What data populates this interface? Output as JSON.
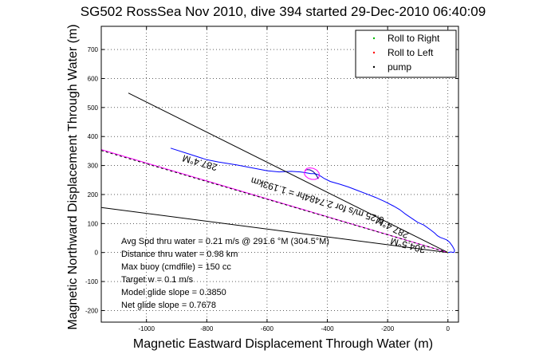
{
  "chart_data": {
    "type": "line",
    "title": "SG502 RossSea Nov 2010, dive 394 started 29-Dec-2010 06:40:09",
    "xlabel": "Magnetic Eastward Displacement Through Water (m)",
    "ylabel": "Magnetic Northward Displacement Through Water (m)",
    "xlim": [
      -1150,
      35
    ],
    "ylim": [
      -240,
      780
    ],
    "xticks": [
      -1000,
      -800,
      -600,
      -400,
      -200,
      0
    ],
    "yticks": [
      -200,
      -100,
      0,
      100,
      200,
      300,
      400,
      500,
      600,
      700
    ],
    "grid": true,
    "legend_position": "top-right",
    "legend": [
      {
        "label": "Roll to Right",
        "color": "#00bb00"
      },
      {
        "label": "Roll to Left",
        "color": "#ff0000"
      },
      {
        "label": "pump",
        "color": "#000000"
      }
    ],
    "series": [
      {
        "color": "#0000ff",
        "x": [
          -920,
          -860,
          -800,
          -760,
          -700,
          -650,
          -600,
          -560,
          -520,
          -490,
          -470,
          -455,
          -445,
          -435,
          -430,
          -420,
          -410,
          -390,
          -360,
          -330,
          -300,
          -270,
          -240,
          -210,
          -180,
          -160,
          -140,
          -120,
          -100,
          -80,
          -60,
          -45,
          -35,
          -25,
          -15,
          -5,
          5,
          15,
          22,
          20,
          10,
          0
        ],
        "y": [
          360,
          340,
          320,
          312,
          302,
          292,
          282,
          278,
          280,
          278,
          275,
          272,
          272,
          270,
          268,
          262,
          255,
          245,
          236,
          226,
          214,
          202,
          190,
          176,
          160,
          148,
          132,
          118,
          104,
          95,
          80,
          68,
          58,
          52,
          48,
          44,
          36,
          22,
          8,
          0,
          2,
          0
        ]
      },
      {
        "color": "#000000",
        "x": [
          -1060,
          0
        ],
        "y": [
          550,
          0
        ]
      },
      {
        "color": "#000000",
        "x": [
          -1150,
          0
        ],
        "y": [
          155,
          0
        ]
      },
      {
        "color": "#ff00ff",
        "x": [
          -1150,
          0
        ],
        "y": [
          355,
          0
        ]
      },
      {
        "color": "#000000",
        "x": [
          -1150,
          0
        ],
        "y": [
          352,
          0
        ],
        "dashed": true
      },
      {
        "color": "#ff00ff",
        "x": [
          -475,
          -468,
          -458,
          -446,
          -435,
          -428,
          -426,
          -430,
          -440,
          -452,
          -463,
          -472,
          -476,
          -476,
          -472,
          -468
        ],
        "y": [
          282,
          290,
          292,
          290,
          284,
          275,
          265,
          257,
          252,
          252,
          256,
          263,
          270,
          277,
          283,
          286
        ]
      },
      {
        "color": "#000080",
        "x": [
          -468,
          -458,
          -448,
          -440,
          -434,
          -430
        ],
        "y": [
          286,
          285,
          280,
          272,
          262,
          254
        ]
      },
      {
        "color": "#00bb00",
        "x": [
          -2,
          -1,
          0
        ],
        "y": [
          2,
          1,
          0
        ]
      },
      {
        "color": "#ff0000",
        "x": [
          -3,
          -2
        ],
        "y": [
          1,
          0
        ]
      }
    ],
    "rotated_labels": [
      {
        "text": "287.4°M",
        "x": -820,
        "y": 320,
        "angle_deg": 196
      },
      {
        "text": "0.25 m/s for 2.7484hr = 1.193km",
        "x": -430,
        "y": 190,
        "angle_deg": 197
      },
      {
        "text": "287.4°M",
        "x": -180,
        "y": 95,
        "angle_deg": 207
      },
      {
        "text": "304.5°M",
        "x": -130,
        "y": 35,
        "angle_deg": 195
      }
    ],
    "annotations": [
      "Avg Spd thru water =  0.21 m/s @ 291.6 °M (304.5°M)",
      "Distance thru water =  0.98 km",
      "Max buoy (cmdfile) = 150 cc",
      "Target w = 0.1 m/s",
      "Model glide slope = 0.3850",
      "Net glide slope = 0.7678"
    ]
  }
}
